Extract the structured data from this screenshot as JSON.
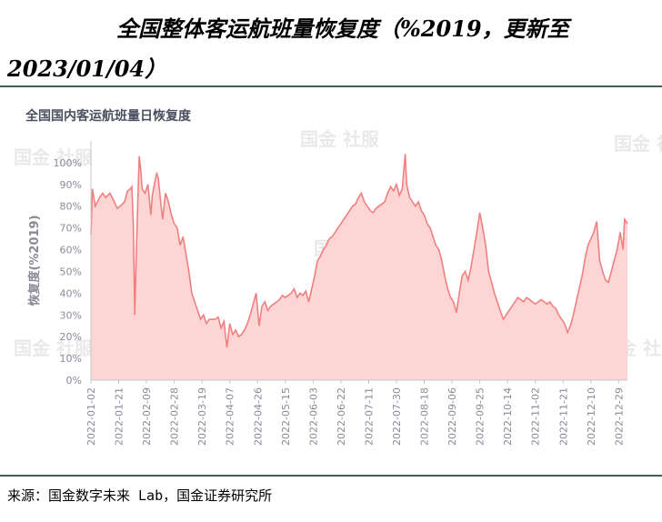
{
  "header": {
    "title_line1": "全国整体客运航班量恢复度（%2019，更新至",
    "title_line2": "2023/01/04）"
  },
  "watermark": "国金 社服",
  "footer": {
    "source": "来源：国金数字未来 Lab，国金证券研究所"
  },
  "colors": {
    "line": "#f08080",
    "fill": "#fdd5d5",
    "rule": "#3f5e52",
    "axis_text": "#8a8a96"
  },
  "chart_data": {
    "type": "area",
    "title": "全国国内客运航班量日恢复度",
    "ylabel": "恢复度(%2019)",
    "xlabel": "",
    "ylim": [
      0,
      110
    ],
    "yticks": [
      0,
      10,
      20,
      30,
      40,
      50,
      60,
      70,
      80,
      90,
      100
    ],
    "ytick_labels": [
      "0%",
      "10%",
      "20%",
      "30%",
      "40%",
      "50%",
      "60%",
      "70%",
      "80%",
      "90%",
      "100%"
    ],
    "xlim": [
      "2022-01-02",
      "2023-01-04"
    ],
    "xticks": [
      "2022-01-02",
      "2022-01-21",
      "2022-02-09",
      "2022-02-28",
      "2022-03-19",
      "2022-04-07",
      "2022-04-26",
      "2022-05-15",
      "2022-06-03",
      "2022-06-22",
      "2022-07-11",
      "2022-07-30",
      "2022-08-18",
      "2022-09-06",
      "2022-09-25",
      "2022-10-14",
      "2022-11-02",
      "2022-11-21",
      "2022-12-10",
      "2022-12-29"
    ],
    "grid": false,
    "series": [
      {
        "name": "",
        "points": [
          [
            "2022-01-02",
            67
          ],
          [
            "2022-01-03",
            88
          ],
          [
            "2022-01-05",
            80
          ],
          [
            "2022-01-08",
            84
          ],
          [
            "2022-01-10",
            86
          ],
          [
            "2022-01-12",
            84
          ],
          [
            "2022-01-15",
            86
          ],
          [
            "2022-01-18",
            82
          ],
          [
            "2022-01-20",
            79
          ],
          [
            "2022-01-22",
            80
          ],
          [
            "2022-01-25",
            82
          ],
          [
            "2022-01-27",
            87
          ],
          [
            "2022-01-29",
            88
          ],
          [
            "2022-01-30",
            89
          ],
          [
            "2022-01-31",
            72
          ],
          [
            "2022-02-01",
            30
          ],
          [
            "2022-02-02",
            57
          ],
          [
            "2022-02-03",
            80
          ],
          [
            "2022-02-04",
            103
          ],
          [
            "2022-02-05",
            97
          ],
          [
            "2022-02-06",
            88
          ],
          [
            "2022-02-08",
            86
          ],
          [
            "2022-02-10",
            90
          ],
          [
            "2022-02-12",
            76
          ],
          [
            "2022-02-13",
            85
          ],
          [
            "2022-02-15",
            92
          ],
          [
            "2022-02-16",
            95
          ],
          [
            "2022-02-17",
            93
          ],
          [
            "2022-02-19",
            80
          ],
          [
            "2022-02-20",
            74
          ],
          [
            "2022-02-22",
            86
          ],
          [
            "2022-02-24",
            82
          ],
          [
            "2022-02-26",
            76
          ],
          [
            "2022-02-28",
            72
          ],
          [
            "2022-03-02",
            70
          ],
          [
            "2022-03-04",
            62
          ],
          [
            "2022-03-06",
            66
          ],
          [
            "2022-03-08",
            58
          ],
          [
            "2022-03-10",
            50
          ],
          [
            "2022-03-12",
            40
          ],
          [
            "2022-03-14",
            36
          ],
          [
            "2022-03-16",
            32
          ],
          [
            "2022-03-18",
            28
          ],
          [
            "2022-03-20",
            30
          ],
          [
            "2022-03-22",
            26
          ],
          [
            "2022-03-24",
            28
          ],
          [
            "2022-03-26",
            28
          ],
          [
            "2022-03-28",
            28
          ],
          [
            "2022-03-30",
            29
          ],
          [
            "2022-04-01",
            24
          ],
          [
            "2022-04-03",
            27
          ],
          [
            "2022-04-05",
            15
          ],
          [
            "2022-04-07",
            26
          ],
          [
            "2022-04-09",
            21
          ],
          [
            "2022-04-11",
            23
          ],
          [
            "2022-04-13",
            20
          ],
          [
            "2022-04-15",
            21
          ],
          [
            "2022-04-17",
            23
          ],
          [
            "2022-04-19",
            26
          ],
          [
            "2022-04-21",
            30
          ],
          [
            "2022-04-23",
            35
          ],
          [
            "2022-04-25",
            40
          ],
          [
            "2022-04-27",
            25
          ],
          [
            "2022-04-29",
            34
          ],
          [
            "2022-05-01",
            36
          ],
          [
            "2022-05-03",
            32
          ],
          [
            "2022-05-05",
            34
          ],
          [
            "2022-05-07",
            35
          ],
          [
            "2022-05-09",
            36
          ],
          [
            "2022-05-11",
            37
          ],
          [
            "2022-05-13",
            39
          ],
          [
            "2022-05-15",
            38
          ],
          [
            "2022-05-17",
            39
          ],
          [
            "2022-05-19",
            40
          ],
          [
            "2022-05-21",
            42
          ],
          [
            "2022-05-23",
            38
          ],
          [
            "2022-05-25",
            40
          ],
          [
            "2022-05-27",
            39
          ],
          [
            "2022-05-29",
            41
          ],
          [
            "2022-05-31",
            36
          ],
          [
            "2022-06-02",
            42
          ],
          [
            "2022-06-04",
            48
          ],
          [
            "2022-06-06",
            55
          ],
          [
            "2022-06-08",
            57
          ],
          [
            "2022-06-10",
            60
          ],
          [
            "2022-06-12",
            62
          ],
          [
            "2022-06-14",
            65
          ],
          [
            "2022-06-16",
            66
          ],
          [
            "2022-06-18",
            68
          ],
          [
            "2022-06-20",
            70
          ],
          [
            "2022-06-22",
            72
          ],
          [
            "2022-06-24",
            74
          ],
          [
            "2022-06-26",
            76
          ],
          [
            "2022-06-28",
            78
          ],
          [
            "2022-06-30",
            80
          ],
          [
            "2022-07-02",
            81
          ],
          [
            "2022-07-04",
            84
          ],
          [
            "2022-07-06",
            86
          ],
          [
            "2022-07-08",
            82
          ],
          [
            "2022-07-10",
            80
          ],
          [
            "2022-07-12",
            78
          ],
          [
            "2022-07-14",
            77
          ],
          [
            "2022-07-16",
            79
          ],
          [
            "2022-07-18",
            80
          ],
          [
            "2022-07-20",
            81
          ],
          [
            "2022-07-22",
            82
          ],
          [
            "2022-07-24",
            86
          ],
          [
            "2022-07-26",
            89
          ],
          [
            "2022-07-28",
            87
          ],
          [
            "2022-07-30",
            90
          ],
          [
            "2022-08-01",
            85
          ],
          [
            "2022-08-03",
            88
          ],
          [
            "2022-08-05",
            104
          ],
          [
            "2022-08-06",
            90
          ],
          [
            "2022-08-08",
            84
          ],
          [
            "2022-08-10",
            82
          ],
          [
            "2022-08-12",
            80
          ],
          [
            "2022-08-14",
            82
          ],
          [
            "2022-08-16",
            78
          ],
          [
            "2022-08-18",
            76
          ],
          [
            "2022-08-20",
            72
          ],
          [
            "2022-08-22",
            70
          ],
          [
            "2022-08-24",
            66
          ],
          [
            "2022-08-26",
            62
          ],
          [
            "2022-08-28",
            60
          ],
          [
            "2022-08-30",
            55
          ],
          [
            "2022-09-01",
            48
          ],
          [
            "2022-09-03",
            42
          ],
          [
            "2022-09-05",
            38
          ],
          [
            "2022-09-07",
            36
          ],
          [
            "2022-09-09",
            31
          ],
          [
            "2022-09-11",
            40
          ],
          [
            "2022-09-13",
            48
          ],
          [
            "2022-09-15",
            50
          ],
          [
            "2022-09-17",
            46
          ],
          [
            "2022-09-19",
            52
          ],
          [
            "2022-09-21",
            60
          ],
          [
            "2022-09-23",
            68
          ],
          [
            "2022-09-25",
            77
          ],
          [
            "2022-09-27",
            70
          ],
          [
            "2022-09-29",
            62
          ],
          [
            "2022-10-01",
            50
          ],
          [
            "2022-10-03",
            45
          ],
          [
            "2022-10-05",
            40
          ],
          [
            "2022-10-07",
            36
          ],
          [
            "2022-10-09",
            32
          ],
          [
            "2022-10-11",
            28
          ],
          [
            "2022-10-13",
            30
          ],
          [
            "2022-10-15",
            32
          ],
          [
            "2022-10-17",
            34
          ],
          [
            "2022-10-19",
            36
          ],
          [
            "2022-10-21",
            38
          ],
          [
            "2022-10-23",
            37
          ],
          [
            "2022-10-25",
            36
          ],
          [
            "2022-10-27",
            38
          ],
          [
            "2022-10-29",
            37
          ],
          [
            "2022-10-31",
            36
          ],
          [
            "2022-11-02",
            35
          ],
          [
            "2022-11-04",
            36
          ],
          [
            "2022-11-06",
            37
          ],
          [
            "2022-11-08",
            36
          ],
          [
            "2022-11-10",
            35
          ],
          [
            "2022-11-12",
            36
          ],
          [
            "2022-11-14",
            34
          ],
          [
            "2022-11-16",
            33
          ],
          [
            "2022-11-18",
            30
          ],
          [
            "2022-11-20",
            28
          ],
          [
            "2022-11-22",
            26
          ],
          [
            "2022-11-24",
            22
          ],
          [
            "2022-11-26",
            25
          ],
          [
            "2022-11-28",
            30
          ],
          [
            "2022-11-30",
            36
          ],
          [
            "2022-12-02",
            42
          ],
          [
            "2022-12-04",
            48
          ],
          [
            "2022-12-06",
            56
          ],
          [
            "2022-12-08",
            62
          ],
          [
            "2022-12-10",
            65
          ],
          [
            "2022-12-12",
            68
          ],
          [
            "2022-12-14",
            73
          ],
          [
            "2022-12-16",
            55
          ],
          [
            "2022-12-18",
            50
          ],
          [
            "2022-12-20",
            46
          ],
          [
            "2022-12-22",
            45
          ],
          [
            "2022-12-24",
            50
          ],
          [
            "2022-12-26",
            55
          ],
          [
            "2022-12-28",
            60
          ],
          [
            "2022-12-30",
            68
          ],
          [
            "2023-01-01",
            60
          ],
          [
            "2023-01-02",
            74
          ],
          [
            "2023-01-03",
            73
          ],
          [
            "2023-01-04",
            72
          ]
        ]
      }
    ]
  }
}
